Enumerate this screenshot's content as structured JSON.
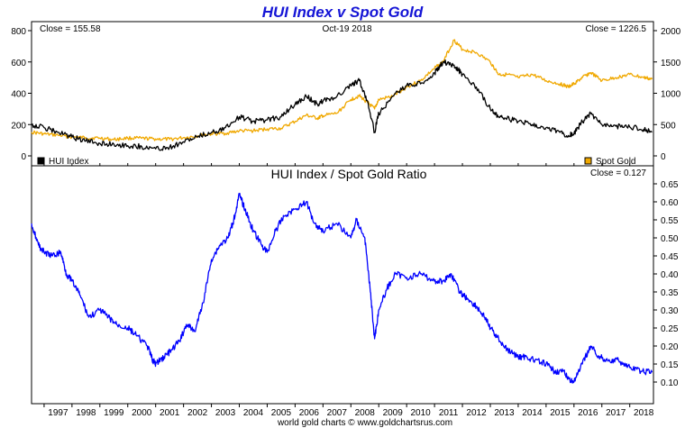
{
  "chart_data": [
    {
      "type": "line",
      "title": "HUI Index v Spot Gold",
      "annotations": {
        "left": "Close = 155.58",
        "center": "Oct-19  2018",
        "right": "Close = 1226.5"
      },
      "x_ticks": [
        "1997",
        "1998",
        "1999",
        "2000",
        "2001",
        "2002",
        "2003",
        "2004",
        "2005",
        "2006",
        "2007",
        "2008",
        "2009",
        "2010",
        "2011",
        "2012",
        "2013",
        "2014",
        "2015",
        "2016",
        "2017",
        "2018"
      ],
      "y_left": {
        "lim": [
          0,
          800
        ],
        "ticks": [
          "0",
          "200",
          "400",
          "600",
          "800"
        ]
      },
      "y_right": {
        "lim": [
          0,
          2000
        ],
        "ticks": [
          "0",
          "500",
          "1000",
          "1500",
          "2000"
        ]
      },
      "grid": false,
      "legend": [
        {
          "name": "HUI Index",
          "color": "#000000",
          "position": "bottom-left"
        },
        {
          "name": "Spot Gold",
          "color": "#f0a800",
          "position": "bottom-right"
        }
      ],
      "series": [
        {
          "name": "HUI Index",
          "axis": "left",
          "color": "#000000",
          "x": [
            1996.55,
            1997.0,
            1997.5,
            1998.0,
            1998.5,
            1999.0,
            1999.5,
            2000.0,
            2000.5,
            2001.0,
            2001.5,
            2002.0,
            2002.5,
            2003.0,
            2003.5,
            2004.0,
            2004.5,
            2005.0,
            2005.5,
            2006.0,
            2006.4,
            2006.8,
            2007.0,
            2007.5,
            2008.0,
            2008.3,
            2008.6,
            2008.85,
            2009.0,
            2009.5,
            2010.0,
            2010.5,
            2011.0,
            2011.3,
            2011.7,
            2012.0,
            2012.5,
            2013.0,
            2013.3,
            2013.6,
            2014.0,
            2014.5,
            2015.0,
            2015.5,
            2015.8,
            2016.0,
            2016.3,
            2016.6,
            2017.0,
            2017.5,
            2018.0,
            2018.5,
            2018.8
          ],
          "values": [
            200,
            180,
            150,
            120,
            95,
            80,
            75,
            65,
            60,
            45,
            55,
            90,
            120,
            150,
            180,
            250,
            220,
            230,
            250,
            330,
            380,
            330,
            350,
            380,
            450,
            480,
            350,
            150,
            270,
            380,
            450,
            460,
            530,
            600,
            580,
            520,
            440,
            300,
            250,
            240,
            220,
            200,
            180,
            150,
            130,
            140,
            220,
            270,
            200,
            190,
            185,
            170,
            155.58
          ]
        },
        {
          "name": "Spot Gold",
          "axis": "right",
          "color": "#f0a800",
          "x": [
            1996.55,
            1997.0,
            1997.5,
            1998.0,
            1998.5,
            1999.0,
            1999.5,
            2000.0,
            2000.5,
            2001.0,
            2001.5,
            2002.0,
            2002.5,
            2003.0,
            2003.5,
            2004.0,
            2004.5,
            2005.0,
            2005.5,
            2006.0,
            2006.4,
            2006.8,
            2007.0,
            2007.5,
            2008.0,
            2008.3,
            2008.6,
            2008.85,
            2009.0,
            2009.5,
            2010.0,
            2010.5,
            2011.0,
            2011.3,
            2011.7,
            2012.0,
            2012.5,
            2013.0,
            2013.3,
            2013.6,
            2014.0,
            2014.5,
            2015.0,
            2015.5,
            2015.8,
            2016.0,
            2016.3,
            2016.6,
            2017.0,
            2017.5,
            2018.0,
            2018.5,
            2018.8
          ],
          "values": [
            380,
            350,
            330,
            300,
            290,
            285,
            260,
            285,
            280,
            270,
            265,
            290,
            320,
            350,
            360,
            400,
            400,
            430,
            440,
            550,
            650,
            600,
            640,
            680,
            900,
            960,
            850,
            750,
            900,
            950,
            1100,
            1200,
            1400,
            1500,
            1850,
            1700,
            1650,
            1500,
            1300,
            1300,
            1250,
            1300,
            1200,
            1150,
            1100,
            1150,
            1250,
            1330,
            1200,
            1250,
            1300,
            1250,
            1226.5
          ]
        }
      ]
    },
    {
      "type": "line",
      "title": "HUI Index  /  Spot Gold Ratio",
      "annotations": {
        "right": "Close = 0.127"
      },
      "x_ticks": [
        "1997",
        "1998",
        "1999",
        "2000",
        "2001",
        "2002",
        "2003",
        "2004",
        "2005",
        "2006",
        "2007",
        "2008",
        "2009",
        "2010",
        "2011",
        "2012",
        "2013",
        "2014",
        "2015",
        "2016",
        "2017",
        "2018"
      ],
      "y_right": {
        "lim": [
          0.085,
          0.665
        ],
        "ticks": [
          "0.10",
          "0.15",
          "0.20",
          "0.25",
          "0.30",
          "0.35",
          "0.40",
          "0.45",
          "0.50",
          "0.55",
          "0.60",
          "0.65"
        ]
      },
      "grid": false,
      "series": [
        {
          "name": "HUI Index  /  Spot Gold Ratio",
          "color": "#0000ff",
          "x": [
            1996.55,
            1996.8,
            1997.0,
            1997.3,
            1997.6,
            1997.8,
            1998.0,
            1998.3,
            1998.6,
            1999.0,
            1999.3,
            1999.6,
            2000.0,
            2000.3,
            2000.7,
            2000.9,
            2001.0,
            2001.3,
            2001.6,
            2001.9,
            2002.1,
            2002.4,
            2002.7,
            2003.0,
            2003.3,
            2003.6,
            2003.8,
            2004.0,
            2004.2,
            2004.5,
            2004.8,
            2005.0,
            2005.3,
            2005.6,
            2006.0,
            2006.4,
            2006.7,
            2007.0,
            2007.5,
            2008.0,
            2008.2,
            2008.5,
            2008.7,
            2008.85,
            2009.0,
            2009.3,
            2009.6,
            2010.0,
            2010.5,
            2011.0,
            2011.3,
            2011.6,
            2011.9,
            2012.2,
            2012.5,
            2012.8,
            2013.0,
            2013.3,
            2013.6,
            2014.0,
            2014.3,
            2014.6,
            2015.0,
            2015.3,
            2015.6,
            2015.8,
            2016.0,
            2016.3,
            2016.6,
            2016.9,
            2017.2,
            2017.6,
            2018.0,
            2018.4,
            2018.8
          ],
          "values": [
            0.54,
            0.48,
            0.46,
            0.45,
            0.46,
            0.4,
            0.38,
            0.34,
            0.28,
            0.3,
            0.28,
            0.26,
            0.25,
            0.23,
            0.2,
            0.16,
            0.15,
            0.17,
            0.19,
            0.22,
            0.26,
            0.24,
            0.32,
            0.44,
            0.48,
            0.5,
            0.55,
            0.62,
            0.58,
            0.52,
            0.48,
            0.46,
            0.52,
            0.56,
            0.58,
            0.6,
            0.54,
            0.52,
            0.54,
            0.5,
            0.55,
            0.5,
            0.35,
            0.22,
            0.3,
            0.36,
            0.4,
            0.39,
            0.4,
            0.38,
            0.38,
            0.4,
            0.35,
            0.33,
            0.31,
            0.28,
            0.25,
            0.22,
            0.19,
            0.17,
            0.17,
            0.16,
            0.15,
            0.13,
            0.13,
            0.11,
            0.1,
            0.15,
            0.2,
            0.17,
            0.16,
            0.16,
            0.14,
            0.13,
            0.127
          ]
        }
      ]
    }
  ],
  "footer": "world gold charts © www.goldchartsrus.com"
}
